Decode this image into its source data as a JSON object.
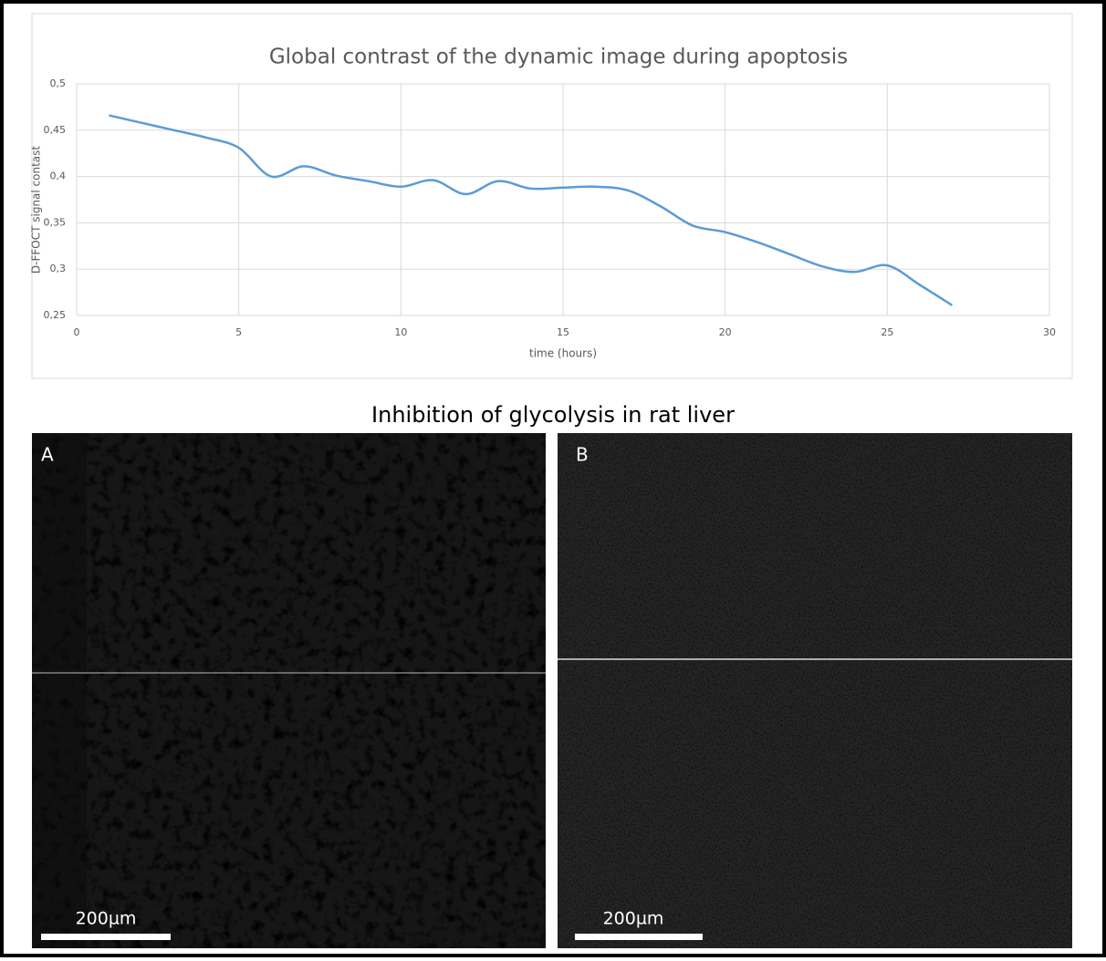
{
  "chart_data": {
    "type": "line",
    "title": "Global contrast of the dynamic image during apoptosis",
    "x_label": "time (hours)",
    "y_label": "D-FFOCT signal contast",
    "x": [
      1,
      2,
      3,
      4,
      5,
      6,
      7,
      8,
      9,
      10,
      11,
      12,
      13,
      14,
      15,
      16,
      17,
      18,
      19,
      20,
      21,
      22,
      23,
      24,
      25,
      26,
      27
    ],
    "values": [
      0.466,
      0.458,
      0.45,
      0.442,
      0.431,
      0.4,
      0.411,
      0.401,
      0.395,
      0.389,
      0.396,
      0.381,
      0.395,
      0.387,
      0.388,
      0.389,
      0.385,
      0.368,
      0.347,
      0.34,
      0.329,
      0.316,
      0.303,
      0.297,
      0.304,
      0.283,
      0.261
    ],
    "color": "#5b9bd5",
    "smooth": true,
    "grid": true,
    "xlim": [
      0,
      30
    ],
    "xticks": [
      0,
      5,
      10,
      15,
      20,
      25,
      30
    ],
    "ylim": [
      0.25,
      0.5
    ],
    "yticks": [
      {
        "value": 0.25,
        "label": "0,25"
      },
      {
        "value": 0.3,
        "label": "0,3"
      },
      {
        "value": 0.35,
        "label": "0,35"
      },
      {
        "value": 0.4,
        "label": "0,4"
      },
      {
        "value": 0.45,
        "label": "0,45"
      },
      {
        "value": 0.5,
        "label": "0,5"
      }
    ]
  },
  "figure": {
    "title": "Inhibition of glycolysis in rat liver",
    "panels": [
      {
        "label": "A",
        "scale_bar": "200µm"
      },
      {
        "label": "B",
        "scale_bar": "200µm"
      }
    ]
  }
}
